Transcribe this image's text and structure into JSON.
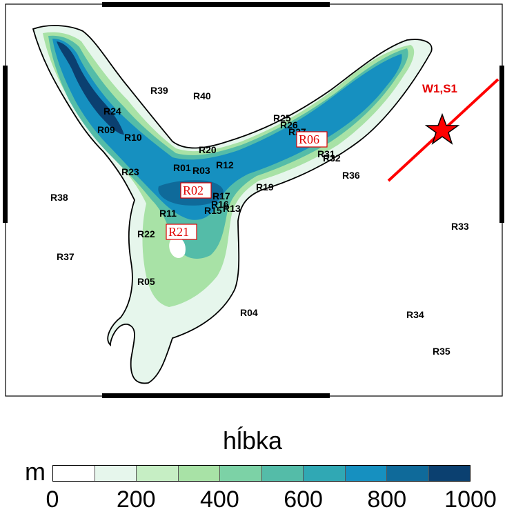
{
  "legend": {
    "title": "hĺbka",
    "unit": "m",
    "tick_labels": [
      "0",
      "200",
      "400",
      "600",
      "800",
      "1000"
    ],
    "bins": [
      {
        "from": 0,
        "to": 100,
        "color": "#ffffff"
      },
      {
        "from": 100,
        "to": 200,
        "color": "#e6f6ec"
      },
      {
        "from": 200,
        "to": 300,
        "color": "#c6eec4"
      },
      {
        "from": 300,
        "to": 400,
        "color": "#a8e2a6"
      },
      {
        "from": 400,
        "to": 500,
        "color": "#7cd2a6"
      },
      {
        "from": 500,
        "to": 600,
        "color": "#54bca8"
      },
      {
        "from": 600,
        "to": 700,
        "color": "#30a8b4"
      },
      {
        "from": 700,
        "to": 800,
        "color": "#1690c0"
      },
      {
        "from": 800,
        "to": 900,
        "color": "#0f6a9a"
      },
      {
        "from": 900,
        "to": 1000,
        "color": "#0b4070"
      }
    ]
  },
  "stations": [
    {
      "id": "R39",
      "highlight": false
    },
    {
      "id": "R40",
      "highlight": false
    },
    {
      "id": "R24",
      "highlight": false
    },
    {
      "id": "R09",
      "highlight": false
    },
    {
      "id": "R10",
      "highlight": false
    },
    {
      "id": "R20",
      "highlight": false
    },
    {
      "id": "R01",
      "highlight": false
    },
    {
      "id": "R03",
      "highlight": false
    },
    {
      "id": "R12",
      "highlight": false
    },
    {
      "id": "R23",
      "highlight": false
    },
    {
      "id": "R25",
      "highlight": false
    },
    {
      "id": "R26",
      "highlight": false
    },
    {
      "id": "R27",
      "highlight": false
    },
    {
      "id": "R06",
      "highlight": true
    },
    {
      "id": "R31",
      "highlight": false
    },
    {
      "id": "R32",
      "highlight": false
    },
    {
      "id": "R36",
      "highlight": false
    },
    {
      "id": "R02",
      "highlight": true
    },
    {
      "id": "R19",
      "highlight": false
    },
    {
      "id": "R38",
      "highlight": false
    },
    {
      "id": "R17",
      "highlight": false
    },
    {
      "id": "R16",
      "highlight": false
    },
    {
      "id": "R13",
      "highlight": false
    },
    {
      "id": "R15",
      "highlight": false
    },
    {
      "id": "R11",
      "highlight": false
    },
    {
      "id": "R33",
      "highlight": false
    },
    {
      "id": "R22",
      "highlight": false
    },
    {
      "id": "R21",
      "highlight": true
    },
    {
      "id": "R37",
      "highlight": false
    },
    {
      "id": "R05",
      "highlight": false
    },
    {
      "id": "R04",
      "highlight": false
    },
    {
      "id": "R34",
      "highlight": false
    },
    {
      "id": "R35",
      "highlight": false
    }
  ],
  "source": {
    "label": "W1,S1",
    "color": "#ff0000"
  },
  "colors": {
    "coast": "#000000",
    "frame": "#000000",
    "station_text": "#000000",
    "highlight": "#e00000"
  }
}
